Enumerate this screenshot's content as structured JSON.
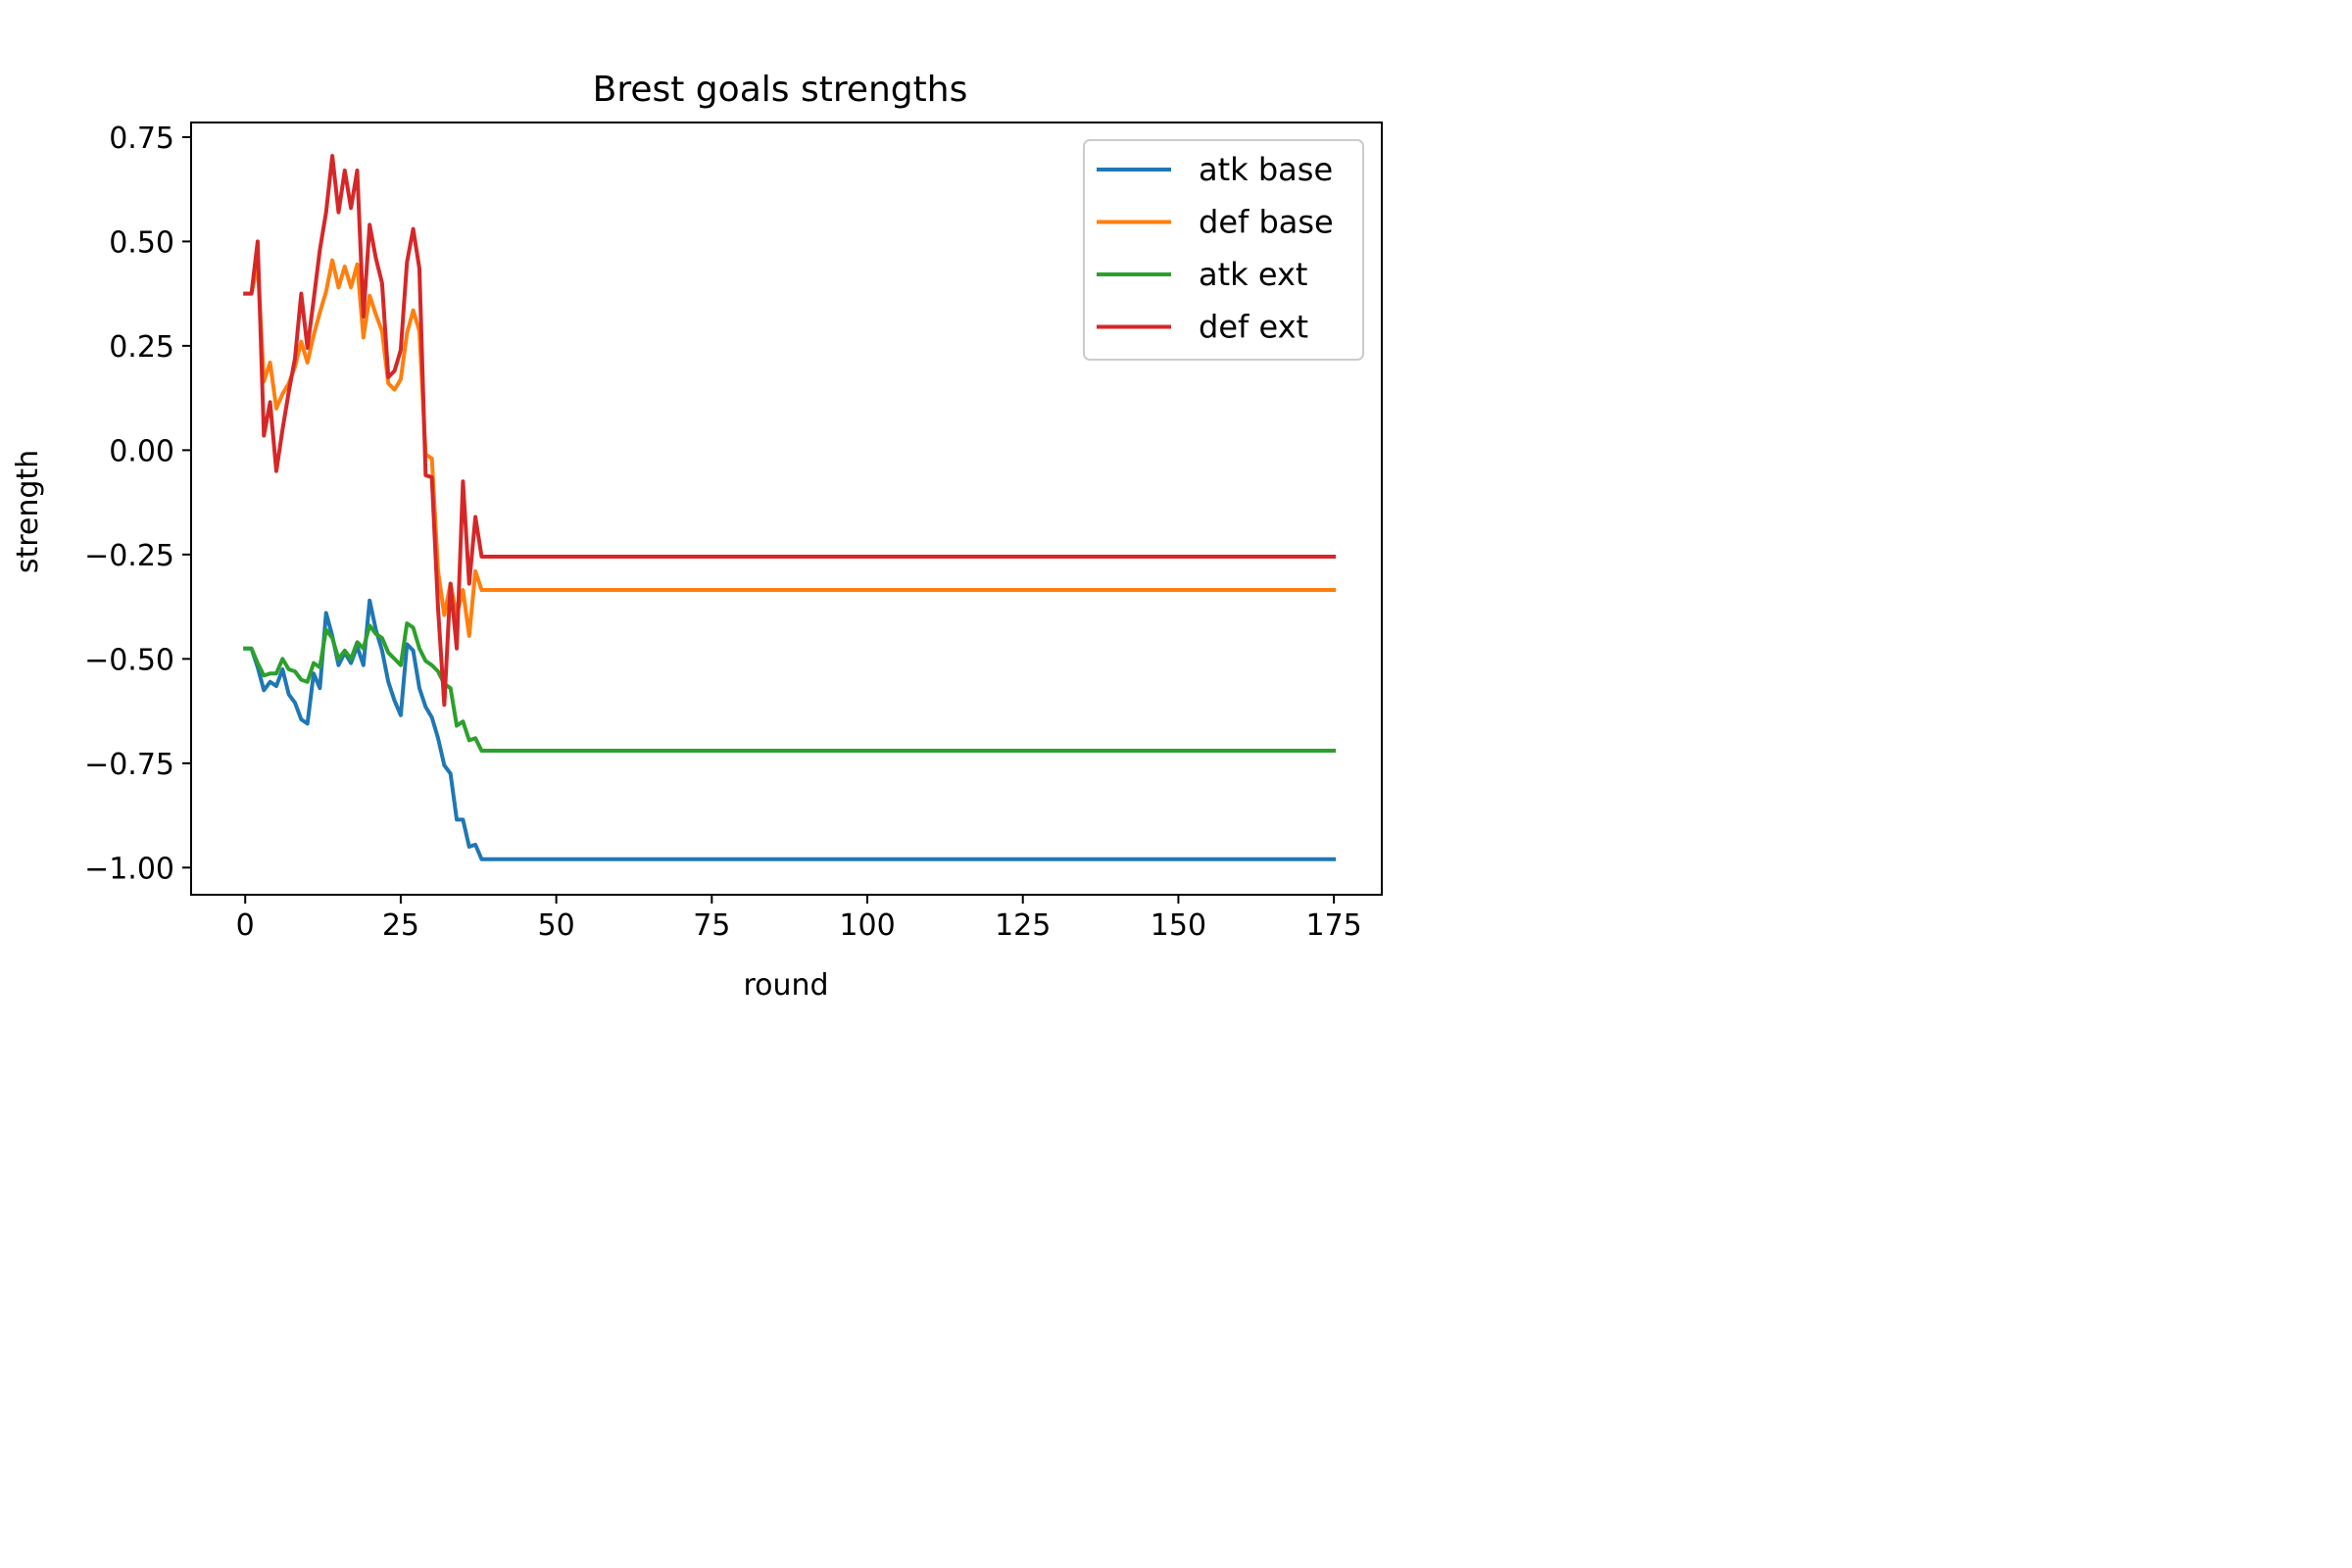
{
  "chart_data": {
    "type": "line",
    "title": "Brest goals strengths",
    "xlabel": "round",
    "ylabel": "strength",
    "xlim": [
      -8.7,
      182.7
    ],
    "ylim": [
      -1.065,
      0.785
    ],
    "xticks": [
      0,
      25,
      50,
      75,
      100,
      125,
      150,
      175
    ],
    "yticks": [
      -1.0,
      -0.75,
      -0.5,
      -0.25,
      0.0,
      0.25,
      0.5,
      0.75
    ],
    "xtick_labels": [
      "0",
      "25",
      "50",
      "75",
      "100",
      "125",
      "150",
      "175"
    ],
    "ytick_labels": [
      "−1.00",
      "−0.75",
      "−0.50",
      "−0.25",
      "0.00",
      "0.25",
      "0.50",
      "0.75"
    ],
    "grid": false,
    "legend_position": "top-right",
    "series": [
      {
        "name": "atk base",
        "color": "#1f77b4",
        "points": [
          [
            0,
            -0.475
          ],
          [
            1,
            -0.475
          ],
          [
            2,
            -0.52
          ],
          [
            3,
            -0.575
          ],
          [
            4,
            -0.555
          ],
          [
            5,
            -0.565
          ],
          [
            6,
            -0.525
          ],
          [
            7,
            -0.585
          ],
          [
            8,
            -0.605
          ],
          [
            9,
            -0.645
          ],
          [
            10,
            -0.655
          ],
          [
            11,
            -0.535
          ],
          [
            12,
            -0.57
          ],
          [
            13,
            -0.39
          ],
          [
            14,
            -0.445
          ],
          [
            15,
            -0.515
          ],
          [
            16,
            -0.485
          ],
          [
            17,
            -0.51
          ],
          [
            18,
            -0.47
          ],
          [
            19,
            -0.515
          ],
          [
            20,
            -0.36
          ],
          [
            21,
            -0.43
          ],
          [
            22,
            -0.48
          ],
          [
            23,
            -0.555
          ],
          [
            24,
            -0.6
          ],
          [
            25,
            -0.635
          ],
          [
            26,
            -0.465
          ],
          [
            27,
            -0.48
          ],
          [
            28,
            -0.57
          ],
          [
            29,
            -0.615
          ],
          [
            30,
            -0.64
          ],
          [
            31,
            -0.69
          ],
          [
            32,
            -0.755
          ],
          [
            33,
            -0.775
          ],
          [
            34,
            -0.885
          ],
          [
            35,
            -0.885
          ],
          [
            36,
            -0.95
          ],
          [
            37,
            -0.945
          ],
          [
            38,
            -0.98
          ],
          [
            175,
            -0.98
          ]
        ]
      },
      {
        "name": "def base",
        "color": "#ff7f0e",
        "points": [
          [
            0,
            0.375
          ],
          [
            1,
            0.375
          ],
          [
            2,
            0.445
          ],
          [
            3,
            0.165
          ],
          [
            4,
            0.21
          ],
          [
            5,
            0.1
          ],
          [
            6,
            0.135
          ],
          [
            7,
            0.16
          ],
          [
            8,
            0.2
          ],
          [
            9,
            0.26
          ],
          [
            10,
            0.21
          ],
          [
            11,
            0.275
          ],
          [
            12,
            0.33
          ],
          [
            13,
            0.38
          ],
          [
            14,
            0.455
          ],
          [
            15,
            0.39
          ],
          [
            16,
            0.44
          ],
          [
            17,
            0.39
          ],
          [
            18,
            0.445
          ],
          [
            19,
            0.27
          ],
          [
            20,
            0.37
          ],
          [
            21,
            0.325
          ],
          [
            22,
            0.285
          ],
          [
            23,
            0.16
          ],
          [
            24,
            0.145
          ],
          [
            25,
            0.17
          ],
          [
            26,
            0.28
          ],
          [
            27,
            0.335
          ],
          [
            28,
            0.285
          ],
          [
            29,
            -0.01
          ],
          [
            30,
            -0.02
          ],
          [
            31,
            -0.29
          ],
          [
            32,
            -0.395
          ],
          [
            33,
            -0.32
          ],
          [
            34,
            -0.395
          ],
          [
            35,
            -0.335
          ],
          [
            36,
            -0.445
          ],
          [
            37,
            -0.29
          ],
          [
            38,
            -0.335
          ],
          [
            175,
            -0.335
          ]
        ]
      },
      {
        "name": "atk ext",
        "color": "#2ca02c",
        "points": [
          [
            0,
            -0.475
          ],
          [
            1,
            -0.475
          ],
          [
            2,
            -0.51
          ],
          [
            3,
            -0.54
          ],
          [
            4,
            -0.535
          ],
          [
            5,
            -0.535
          ],
          [
            6,
            -0.5
          ],
          [
            7,
            -0.525
          ],
          [
            8,
            -0.53
          ],
          [
            9,
            -0.55
          ],
          [
            10,
            -0.555
          ],
          [
            11,
            -0.51
          ],
          [
            12,
            -0.52
          ],
          [
            13,
            -0.43
          ],
          [
            14,
            -0.45
          ],
          [
            15,
            -0.5
          ],
          [
            16,
            -0.48
          ],
          [
            17,
            -0.5
          ],
          [
            18,
            -0.46
          ],
          [
            19,
            -0.475
          ],
          [
            20,
            -0.42
          ],
          [
            21,
            -0.44
          ],
          [
            22,
            -0.45
          ],
          [
            23,
            -0.485
          ],
          [
            24,
            -0.5
          ],
          [
            25,
            -0.515
          ],
          [
            26,
            -0.415
          ],
          [
            27,
            -0.425
          ],
          [
            28,
            -0.475
          ],
          [
            29,
            -0.505
          ],
          [
            30,
            -0.515
          ],
          [
            31,
            -0.53
          ],
          [
            32,
            -0.56
          ],
          [
            33,
            -0.57
          ],
          [
            34,
            -0.66
          ],
          [
            35,
            -0.65
          ],
          [
            36,
            -0.695
          ],
          [
            37,
            -0.69
          ],
          [
            38,
            -0.72
          ],
          [
            175,
            -0.72
          ]
        ]
      },
      {
        "name": "def ext",
        "color": "#d62728",
        "points": [
          [
            0,
            0.375
          ],
          [
            1,
            0.375
          ],
          [
            2,
            0.5
          ],
          [
            3,
            0.035
          ],
          [
            4,
            0.115
          ],
          [
            5,
            -0.05
          ],
          [
            6,
            0.05
          ],
          [
            7,
            0.14
          ],
          [
            8,
            0.22
          ],
          [
            9,
            0.375
          ],
          [
            10,
            0.245
          ],
          [
            11,
            0.36
          ],
          [
            12,
            0.48
          ],
          [
            13,
            0.57
          ],
          [
            14,
            0.705
          ],
          [
            15,
            0.57
          ],
          [
            16,
            0.67
          ],
          [
            17,
            0.58
          ],
          [
            18,
            0.67
          ],
          [
            19,
            0.32
          ],
          [
            20,
            0.54
          ],
          [
            21,
            0.46
          ],
          [
            22,
            0.4
          ],
          [
            23,
            0.175
          ],
          [
            24,
            0.19
          ],
          [
            25,
            0.24
          ],
          [
            26,
            0.45
          ],
          [
            27,
            0.53
          ],
          [
            28,
            0.435
          ],
          [
            29,
            -0.06
          ],
          [
            30,
            -0.065
          ],
          [
            31,
            -0.38
          ],
          [
            32,
            -0.61
          ],
          [
            33,
            -0.32
          ],
          [
            34,
            -0.475
          ],
          [
            35,
            -0.075
          ],
          [
            36,
            -0.32
          ],
          [
            37,
            -0.16
          ],
          [
            38,
            -0.255
          ],
          [
            175,
            -0.255
          ]
        ]
      }
    ]
  }
}
